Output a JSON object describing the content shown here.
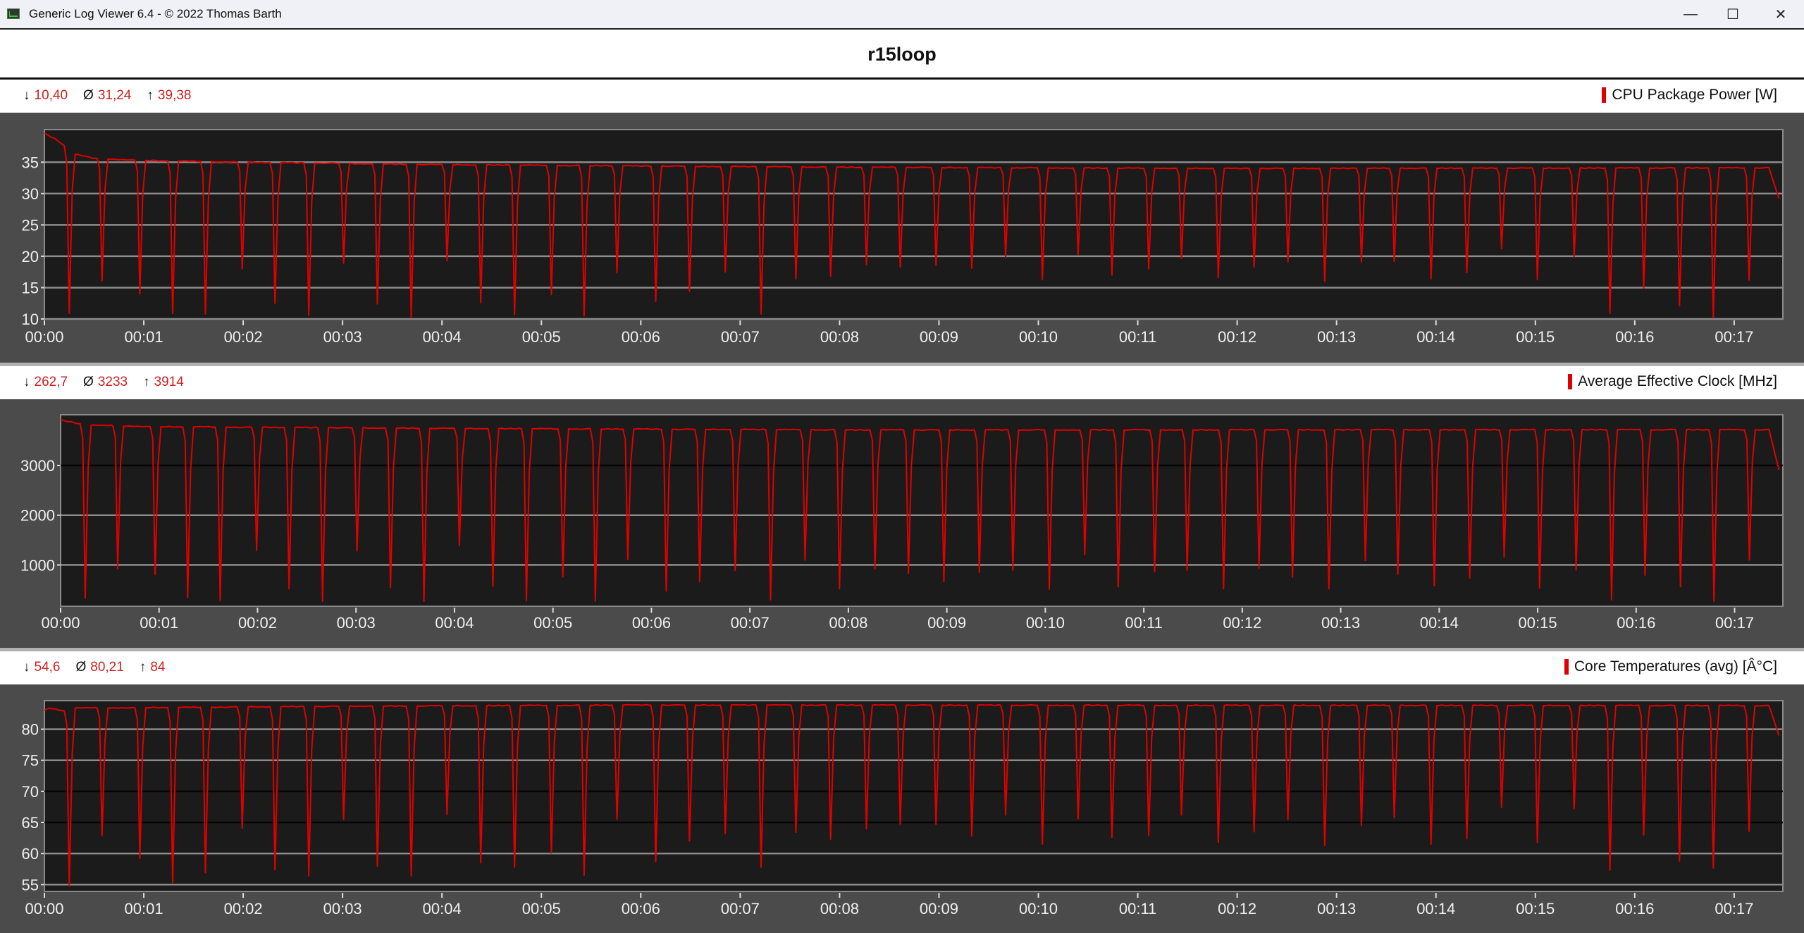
{
  "window": {
    "title": "Generic Log Viewer 6.4 - © 2022 Thomas Barth",
    "controls": {
      "minimize": "—",
      "maximize": "☐",
      "close": "✕"
    }
  },
  "chart_title": "r15loop",
  "panels": [
    {
      "stats": {
        "min_symbol": "↓",
        "min": "10,40",
        "avg_symbol": "Ø",
        "avg": "31,24",
        "max_symbol": "↑",
        "max": "39,38"
      },
      "legend": "CPU Package Power [W]"
    },
    {
      "stats": {
        "min_symbol": "↓",
        "min": "262,7",
        "avg_symbol": "Ø",
        "avg": "3233",
        "max_symbol": "↑",
        "max": "3914"
      },
      "legend": "Average Effective Clock [MHz]"
    },
    {
      "stats": {
        "min_symbol": "↓",
        "min": "54,6",
        "avg_symbol": "Ø",
        "avg": "80,21",
        "max_symbol": "↑",
        "max": "84"
      },
      "legend": "Core Temperatures (avg) [Â°C]"
    }
  ],
  "chart_data": [
    {
      "type": "line",
      "series_name": "CPU Package Power [W]",
      "color": "#e00000",
      "x_unit": "minutes",
      "xlim": [
        0,
        17.49
      ],
      "ylim": [
        10,
        40.2
      ],
      "x_ticks": [
        "00:00",
        "00:01",
        "00:02",
        "00:03",
        "00:04",
        "00:05",
        "00:06",
        "00:07",
        "00:08",
        "00:09",
        "00:10",
        "00:11",
        "00:12",
        "00:13",
        "00:14",
        "00:15",
        "00:16",
        "00:17"
      ],
      "y_ticks": [
        35,
        30,
        25,
        20,
        15,
        10
      ],
      "grid": true,
      "plateau": [
        [
          0,
          39.6
        ],
        [
          0.12,
          38.6
        ],
        [
          0.22,
          37.4
        ],
        [
          0.3,
          36.3
        ],
        [
          0.5,
          35.6
        ],
        [
          1,
          35.3
        ],
        [
          2,
          35
        ],
        [
          4,
          34.6
        ],
        [
          8,
          34.2
        ],
        [
          12,
          34
        ],
        [
          17.35,
          34.1
        ],
        [
          17.45,
          29.2
        ]
      ],
      "dips": [
        [
          0.25,
          10.9
        ],
        [
          0.58,
          16.1
        ],
        [
          0.96,
          14
        ],
        [
          1.29,
          10.9
        ],
        [
          1.62,
          10.8
        ],
        [
          1.99,
          18
        ],
        [
          2.32,
          12.5
        ],
        [
          2.66,
          10.6
        ],
        [
          3.01,
          18.9
        ],
        [
          3.35,
          12.4
        ],
        [
          3.69,
          10.3
        ],
        [
          4.05,
          19.3
        ],
        [
          4.39,
          12.6
        ],
        [
          4.73,
          10.7
        ],
        [
          5.1,
          13.9
        ],
        [
          5.43,
          10.5
        ],
        [
          5.76,
          17.4
        ],
        [
          6.15,
          12.8
        ],
        [
          6.49,
          14.4
        ],
        [
          6.85,
          17.5
        ],
        [
          7.21,
          10.8
        ],
        [
          7.56,
          16.4
        ],
        [
          7.91,
          16.8
        ],
        [
          8.27,
          18.7
        ],
        [
          8.61,
          18.3
        ],
        [
          8.97,
          18.6
        ],
        [
          9.33,
          18.1
        ],
        [
          9.67,
          19.9
        ],
        [
          10.04,
          16.3
        ],
        [
          10.4,
          20.3
        ],
        [
          10.74,
          17
        ],
        [
          11.11,
          18
        ],
        [
          11.44,
          19.7
        ],
        [
          11.81,
          16.6
        ],
        [
          12.17,
          18.3
        ],
        [
          12.51,
          19.1
        ],
        [
          12.88,
          16
        ],
        [
          13.25,
          19.1
        ],
        [
          13.58,
          19.2
        ],
        [
          13.95,
          16.4
        ],
        [
          14.31,
          17.4
        ],
        [
          14.66,
          21.2
        ],
        [
          15.02,
          16.3
        ],
        [
          15.39,
          19.9
        ],
        [
          15.75,
          10.9
        ],
        [
          16.09,
          14.9
        ],
        [
          16.45,
          12.1
        ],
        [
          16.79,
          10.2
        ],
        [
          17.15,
          16.2
        ]
      ]
    },
    {
      "type": "line",
      "series_name": "Average Effective Clock [MHz]",
      "color": "#e00000",
      "x_unit": "minutes",
      "xlim": [
        0,
        17.49
      ],
      "ylim": [
        170,
        4020
      ],
      "x_ticks": [
        "00:00",
        "00:01",
        "00:02",
        "00:03",
        "00:04",
        "00:05",
        "00:06",
        "00:07",
        "00:08",
        "00:09",
        "00:10",
        "00:11",
        "00:12",
        "00:13",
        "00:14",
        "00:15",
        "00:16",
        "00:17"
      ],
      "y_ticks": [
        3000,
        2000,
        1000
      ],
      "grid": true,
      "plateau": [
        [
          0,
          3914
        ],
        [
          0.22,
          3830
        ],
        [
          0.3,
          3810
        ],
        [
          1,
          3780
        ],
        [
          4,
          3745
        ],
        [
          8,
          3715
        ],
        [
          17.35,
          3720
        ],
        [
          17.45,
          2910
        ]
      ],
      "dips": [
        [
          0.25,
          333
        ],
        [
          0.58,
          923
        ],
        [
          0.96,
          810
        ],
        [
          1.29,
          347
        ],
        [
          1.62,
          286
        ],
        [
          1.99,
          1291
        ],
        [
          2.32,
          522
        ],
        [
          2.66,
          267
        ],
        [
          3.01,
          1282
        ],
        [
          3.35,
          550
        ],
        [
          3.69,
          267
        ],
        [
          4.05,
          1395
        ],
        [
          4.39,
          569
        ],
        [
          4.73,
          286
        ],
        [
          5.1,
          763
        ],
        [
          5.43,
          277
        ],
        [
          5.76,
          1117
        ],
        [
          6.15,
          475
        ],
        [
          6.49,
          668
        ],
        [
          6.85,
          890
        ],
        [
          7.21,
          300
        ],
        [
          7.56,
          1103
        ],
        [
          7.91,
          522
        ],
        [
          8.27,
          923
        ],
        [
          8.61,
          834
        ],
        [
          8.97,
          664
        ],
        [
          9.33,
          852
        ],
        [
          9.67,
          890
        ],
        [
          10.04,
          513
        ],
        [
          10.4,
          1211
        ],
        [
          10.74,
          560
        ],
        [
          11.11,
          867
        ],
        [
          11.44,
          890
        ],
        [
          11.81,
          522
        ],
        [
          12.17,
          937
        ],
        [
          12.51,
          758
        ],
        [
          12.88,
          522
        ],
        [
          13.25,
          1088
        ],
        [
          13.58,
          819
        ],
        [
          13.95,
          583
        ],
        [
          14.31,
          739
        ],
        [
          14.66,
          1164
        ],
        [
          15.02,
          536
        ],
        [
          15.39,
          900
        ],
        [
          15.75,
          300
        ],
        [
          16.09,
          796
        ],
        [
          16.45,
          560
        ],
        [
          16.79,
          267
        ],
        [
          17.15,
          1103
        ]
      ]
    },
    {
      "type": "line",
      "series_name": "Core Temperatures (avg) [Â°C]",
      "color": "#e00000",
      "x_unit": "minutes",
      "xlim": [
        0,
        17.49
      ],
      "ylim": [
        53.9,
        84.6
      ],
      "x_ticks": [
        "00:00",
        "00:01",
        "00:02",
        "00:03",
        "00:04",
        "00:05",
        "00:06",
        "00:07",
        "00:08",
        "00:09",
        "00:10",
        "00:11",
        "00:12",
        "00:13",
        "00:14",
        "00:15",
        "00:16",
        "00:17"
      ],
      "y_ticks": [
        80,
        75,
        70,
        65,
        60,
        55
      ],
      "grid": true,
      "plateau": [
        [
          0,
          83
        ],
        [
          0.05,
          83.4
        ],
        [
          0.22,
          82.9
        ],
        [
          0.3,
          83.4
        ],
        [
          3,
          83.7
        ],
        [
          6,
          83.9
        ],
        [
          17.35,
          83.8
        ],
        [
          17.45,
          79
        ]
      ],
      "dips": [
        [
          0.25,
          54.8
        ],
        [
          0.58,
          62.9
        ],
        [
          0.96,
          59.2
        ],
        [
          1.29,
          55.3
        ],
        [
          1.62,
          56.9
        ],
        [
          1.99,
          64.1
        ],
        [
          2.32,
          57.4
        ],
        [
          2.66,
          56.4
        ],
        [
          3.01,
          65.5
        ],
        [
          3.35,
          58
        ],
        [
          3.69,
          56.4
        ],
        [
          4.05,
          66.3
        ],
        [
          4.39,
          58.5
        ],
        [
          4.73,
          57.8
        ],
        [
          5.1,
          60.1
        ],
        [
          5.43,
          56.5
        ],
        [
          5.76,
          65.5
        ],
        [
          6.15,
          58.7
        ],
        [
          6.49,
          62
        ],
        [
          6.85,
          63.2
        ],
        [
          7.21,
          57.8
        ],
        [
          7.56,
          63.4
        ],
        [
          7.91,
          62.3
        ],
        [
          8.27,
          64
        ],
        [
          8.61,
          64.7
        ],
        [
          8.97,
          64.7
        ],
        [
          9.33,
          62.8
        ],
        [
          9.67,
          66.2
        ],
        [
          10.04,
          61.5
        ],
        [
          10.4,
          65.6
        ],
        [
          10.74,
          62.6
        ],
        [
          11.11,
          62.9
        ],
        [
          11.44,
          66.2
        ],
        [
          11.81,
          61.8
        ],
        [
          12.17,
          63.5
        ],
        [
          12.51,
          65.5
        ],
        [
          12.88,
          61.3
        ],
        [
          13.25,
          64.5
        ],
        [
          13.58,
          65.8
        ],
        [
          13.95,
          61.5
        ],
        [
          14.31,
          62.4
        ],
        [
          14.66,
          67.4
        ],
        [
          15.02,
          61.8
        ],
        [
          15.39,
          67.2
        ],
        [
          15.75,
          57.3
        ],
        [
          16.09,
          63
        ],
        [
          16.45,
          58.8
        ],
        [
          16.79,
          57.7
        ],
        [
          17.15,
          63.6
        ]
      ]
    }
  ]
}
